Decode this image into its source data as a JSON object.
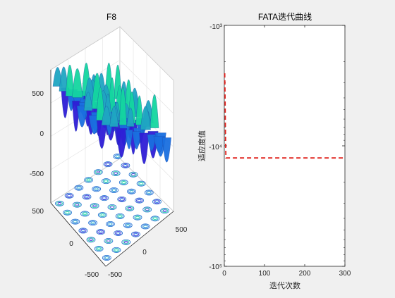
{
  "chart_data": [
    {
      "type": "surface3d",
      "title": "F8",
      "z_ticks": [
        "500",
        "0",
        "-500"
      ],
      "x_ticks": [
        "500",
        "0",
        "-500"
      ],
      "y_ticks": [
        "500",
        "0",
        "-500"
      ],
      "xlim": [
        -500,
        500
      ],
      "ylim": [
        -500,
        500
      ],
      "zlim": [
        -800,
        800
      ],
      "colormap": [
        "#2f1dd6",
        "#1a6fe0",
        "#1fa6c2",
        "#14d6a0"
      ],
      "contour_color": "#1f6fd0",
      "grid": true
    },
    {
      "type": "line",
      "title": "FATA迭代曲线",
      "xlabel": "迭代次数",
      "ylabel": "适应度值",
      "x_ticks": [
        "0",
        "100",
        "200",
        "300"
      ],
      "y_ticks": [
        "-10³",
        "-10⁴",
        "-10⁵"
      ],
      "xlim": [
        0,
        300
      ],
      "ylim_log_magnitude": [
        3,
        5
      ],
      "y_scale": "log (negative values)",
      "series": [
        {
          "color": "#e0201b",
          "style": "dashed",
          "x": [
            1,
            2,
            3,
            4,
            300
          ],
          "y": [
            -2500,
            -4000,
            -8500,
            -12600,
            -12600
          ]
        }
      ]
    }
  ]
}
